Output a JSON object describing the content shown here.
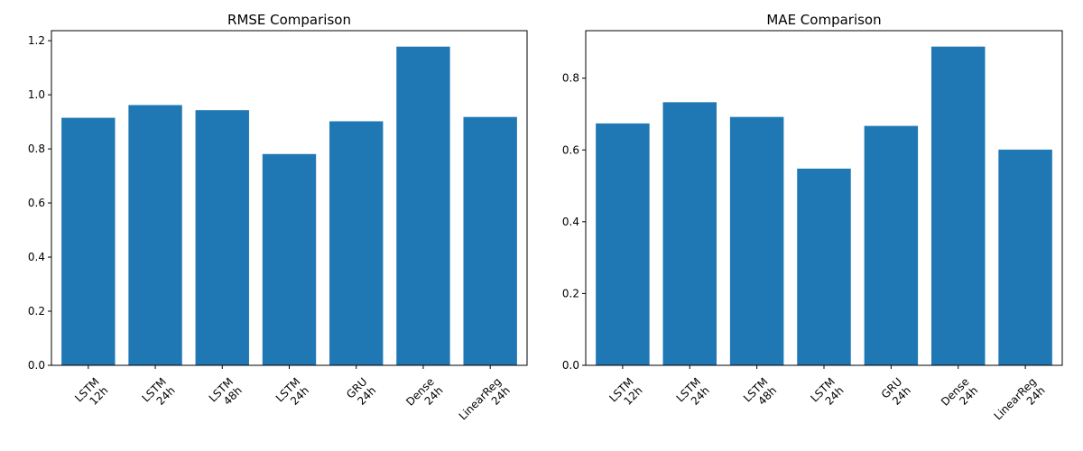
{
  "chart_data": [
    {
      "type": "bar",
      "title": "RMSE Comparison",
      "xlabel": "",
      "ylabel": "",
      "categories": [
        [
          "LSTM",
          "12h"
        ],
        [
          "LSTM",
          "24h"
        ],
        [
          "LSTM",
          "48h"
        ],
        [
          "LSTM",
          "24h"
        ],
        [
          "GRU",
          "24h"
        ],
        [
          "Dense",
          "24h"
        ],
        [
          "LinearReg",
          "24h"
        ]
      ],
      "values": [
        0.915,
        0.962,
        0.943,
        0.781,
        0.902,
        1.178,
        0.918
      ],
      "ylim": [
        0,
        1.237
      ],
      "yticks": [
        0.0,
        0.2,
        0.4,
        0.6,
        0.8,
        1.0,
        1.2
      ],
      "ytick_labels": [
        "0.0",
        "0.2",
        "0.4",
        "0.6",
        "0.8",
        "1.0",
        "1.2"
      ],
      "bar_color": "#1f77b4",
      "grid": false,
      "legend": "none"
    },
    {
      "type": "bar",
      "title": "MAE Comparison",
      "xlabel": "",
      "ylabel": "",
      "categories": [
        [
          "LSTM",
          "12h"
        ],
        [
          "LSTM",
          "24h"
        ],
        [
          "LSTM",
          "48h"
        ],
        [
          "LSTM",
          "24h"
        ],
        [
          "GRU",
          "24h"
        ],
        [
          "Dense",
          "24h"
        ],
        [
          "LinearReg",
          "24h"
        ]
      ],
      "values": [
        0.674,
        0.733,
        0.692,
        0.548,
        0.667,
        0.888,
        0.601
      ],
      "ylim": [
        0,
        0.9324
      ],
      "yticks": [
        0.0,
        0.2,
        0.4,
        0.6,
        0.8
      ],
      "ytick_labels": [
        "0.0",
        "0.2",
        "0.4",
        "0.6",
        "0.8"
      ],
      "bar_color": "#1f77b4",
      "grid": false,
      "legend": "none"
    }
  ]
}
